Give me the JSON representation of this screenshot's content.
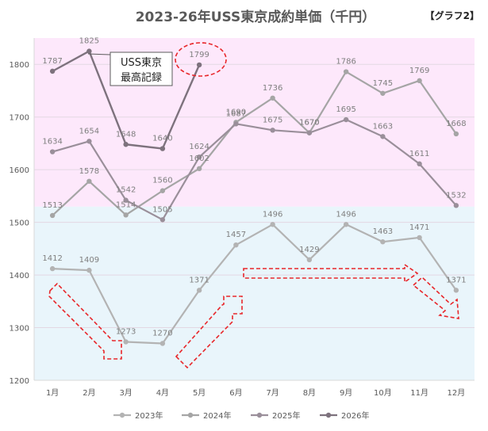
{
  "title": "2023-26年USS東京成約単価（千円）",
  "graph_tag": "【グラフ2】",
  "callout": {
    "line1": "USS東京",
    "line2": "最高記録"
  },
  "colors": {
    "pink_band": "#fde8fb",
    "blue_band": "#e9f5fb",
    "gridline": "#e3d7e3",
    "axis_text": "#595959",
    "arrow": "#e8262a",
    "circle": "#e8262a",
    "series": [
      "#b3b3b3",
      "#a5a5a5",
      "#9a8f9a",
      "#7d727d"
    ]
  },
  "chart_data": {
    "type": "line",
    "title": "2023-26年USS東京成約単価（千円）",
    "categories": [
      "1月",
      "2月",
      "3月",
      "4月",
      "5月",
      "6月",
      "7月",
      "8月",
      "9月",
      "10月",
      "11月",
      "12月"
    ],
    "ylim": [
      1200,
      1850
    ],
    "yticks": [
      1200,
      1300,
      1400,
      1500,
      1600,
      1700,
      1800
    ],
    "grid": true,
    "legend_position": "bottom",
    "bands": [
      {
        "from": 1200,
        "to": 1530,
        "color": "blue"
      },
      {
        "from": 1530,
        "to": 1850,
        "color": "pink"
      }
    ],
    "series": [
      {
        "name": "2023年",
        "values": [
          1412,
          1409,
          1273,
          1270,
          1371,
          1457,
          1496,
          1429,
          1496,
          1463,
          1471,
          1371
        ]
      },
      {
        "name": "2024年",
        "values": [
          1513,
          1578,
          1514,
          1560,
          1602,
          1690,
          1736,
          1670,
          1786,
          1745,
          1769,
          1668
        ]
      },
      {
        "name": "2025年",
        "values": [
          1634,
          1654,
          1542,
          1505,
          1624,
          1687,
          1675,
          1670,
          1695,
          1663,
          1611,
          1532
        ]
      },
      {
        "name": "2026年",
        "values": [
          1787,
          1825,
          1648,
          1640,
          1799,
          null,
          null,
          null,
          null,
          null,
          null,
          null
        ]
      }
    ]
  }
}
